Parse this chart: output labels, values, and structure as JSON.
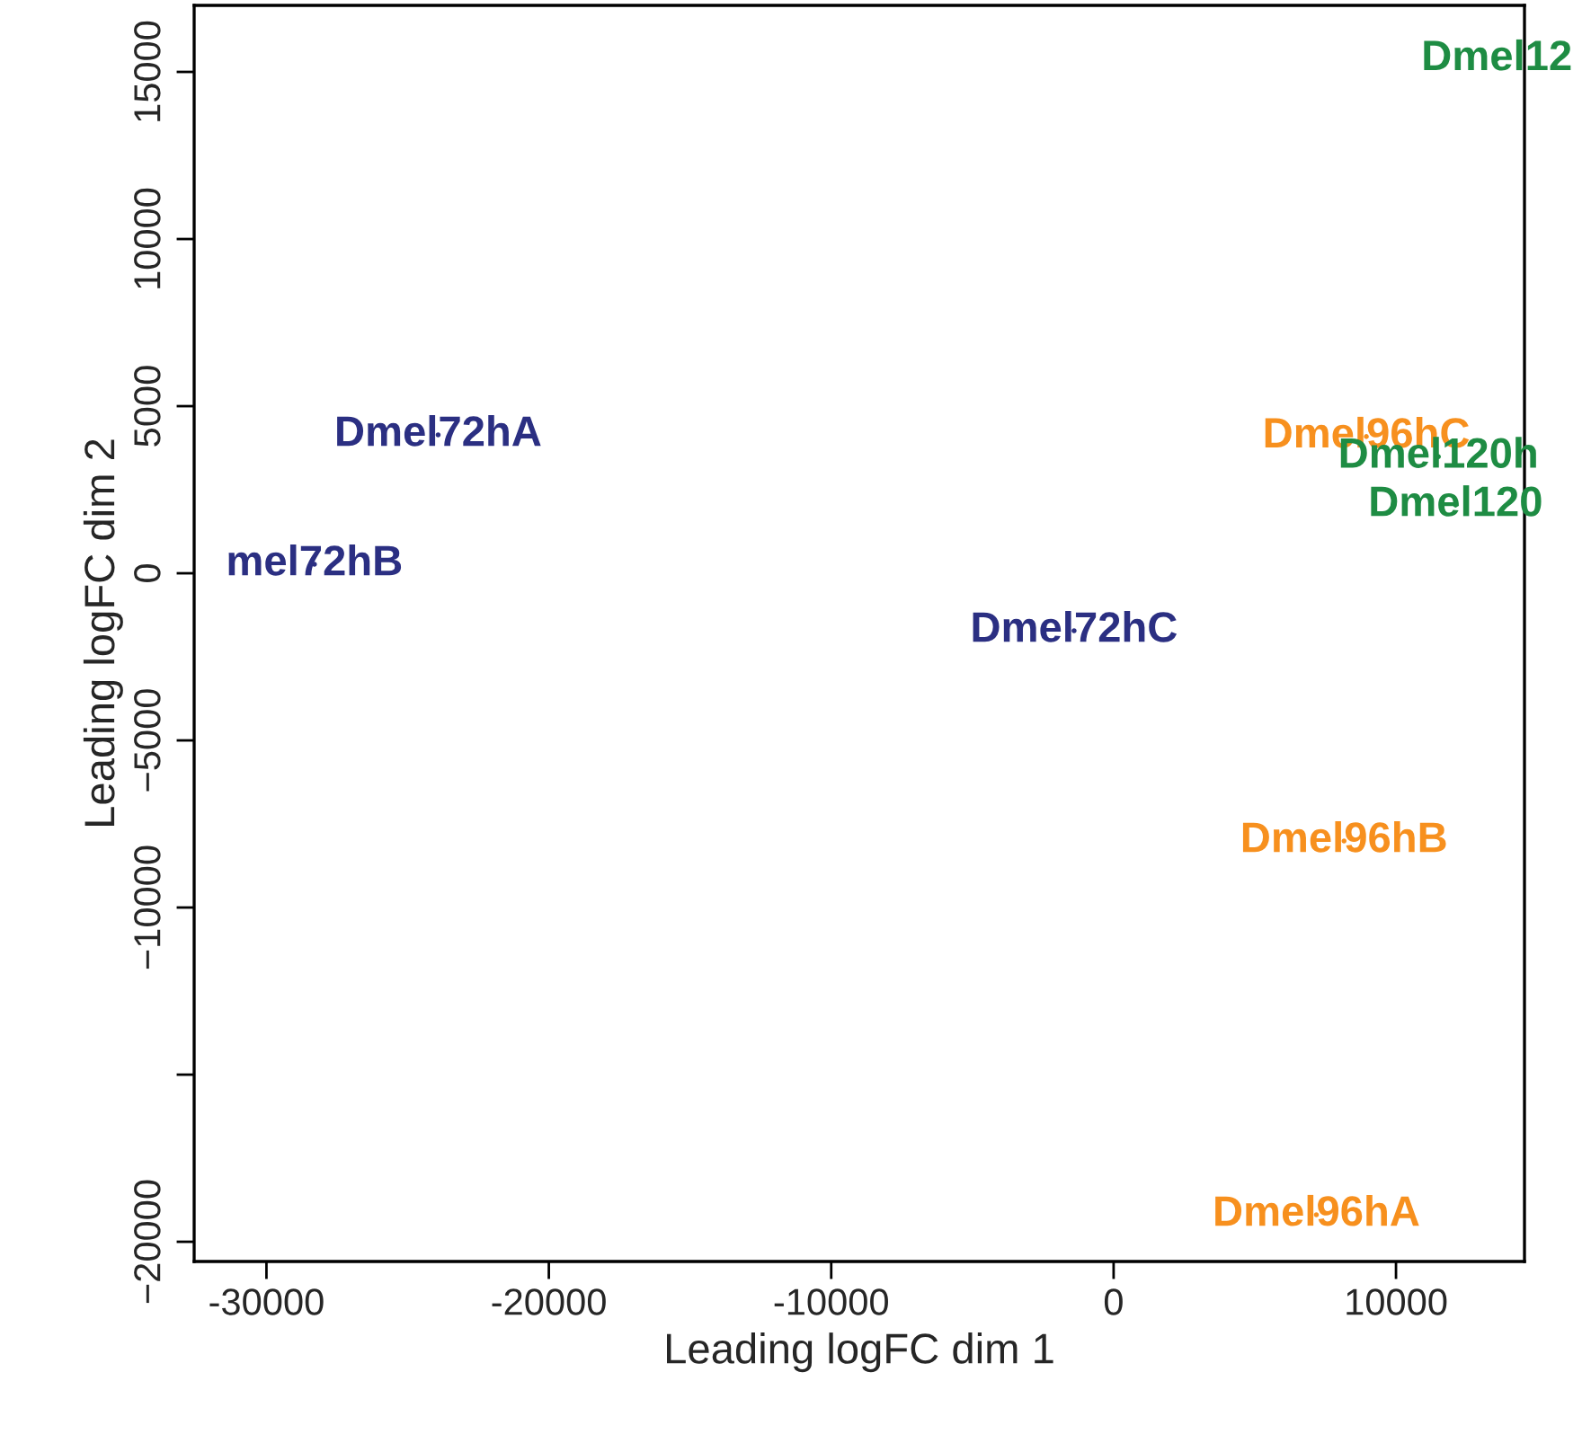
{
  "chart_data": {
    "type": "scatter",
    "xlabel": "Leading logFC dim 1",
    "ylabel": "Leading logFC dim 2",
    "marker": "circle",
    "grid": false,
    "legend": false,
    "xlim": [
      -32560,
      14550
    ],
    "ylim": [
      -20590,
      16990
    ],
    "xticks": [
      -30000,
      -20000,
      -10000,
      0,
      10000
    ],
    "yticks": [
      {
        "value": -20000,
        "label": "−20000"
      },
      {
        "value": -15000,
        "label": null
      },
      {
        "value": -10000,
        "label": "−10000"
      },
      {
        "value": -5000,
        "label": "−5000"
      },
      0,
      5000,
      10000,
      15000
    ],
    "series": [
      {
        "color": "#2b2f82",
        "x": [
          -23920,
          -28300,
          -1400
        ],
        "values": [
          4140,
          270,
          -1720
        ],
        "value_labels": [
          "Dmel72hA",
          "mel72hB",
          "Dmel72hC"
        ]
      },
      {
        "color": "#f7901e",
        "x": [
          7180,
          8160,
          8950
        ],
        "values": [
          -19190,
          -8010,
          4090
        ],
        "value_labels": [
          "Dmel96hA",
          "Dmel96hB",
          "Dmel96hC"
        ]
      },
      {
        "color": "#1e8c43",
        "x": [
          13570,
          11500,
          12110
        ],
        "values": [
          15380,
          3490,
          2040
        ],
        "value_labels": [
          "Dmel12",
          "Dmel120h",
          "Dmel120"
        ]
      }
    ]
  }
}
